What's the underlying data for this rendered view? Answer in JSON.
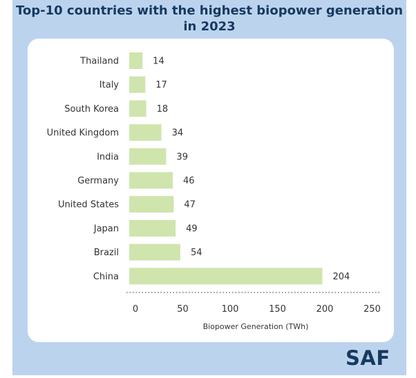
{
  "title": "Top-10 countries with the highest biopower generation in 2023",
  "logo": "SAF",
  "colors": {
    "background": "#bcd3ee",
    "bar": "#cfe5ad",
    "title": "#16395f"
  },
  "chart_data": {
    "type": "bar",
    "orientation": "horizontal",
    "categories": [
      "Thailand",
      "Italy",
      "South Korea",
      "United Kingdom",
      "India",
      "Germany",
      "United States",
      "Japan",
      "Brazil",
      "China"
    ],
    "values": [
      14,
      17,
      18,
      34,
      39,
      46,
      47,
      49,
      54,
      204
    ],
    "xlabel": "Biopower Generation (TWh)",
    "xlim": [
      0,
      250
    ],
    "xticks": [
      0,
      50,
      100,
      150,
      200,
      250
    ],
    "data_labels": true,
    "grid": false
  }
}
